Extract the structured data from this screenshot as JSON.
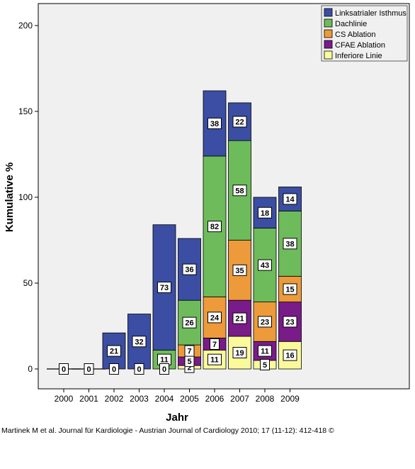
{
  "chart_data": {
    "type": "bar",
    "stacked": true,
    "xlabel": "Jahr",
    "ylabel": "Kumulative %",
    "ylim": [
      0,
      212
    ],
    "yticks": [
      0,
      50,
      100,
      150,
      200
    ],
    "grid": false,
    "legend_position": "top-right",
    "categories": [
      "2000",
      "2001",
      "2002",
      "2003",
      "2004",
      "2005",
      "2006",
      "2007",
      "2008",
      "2009"
    ],
    "series": [
      {
        "name": "Inferiore Linie",
        "color": "#fafa9b",
        "values": [
          0,
          0,
          0,
          0,
          0,
          2,
          11,
          19,
          5,
          16
        ],
        "labels": [
          "",
          "",
          "",
          "",
          "",
          "2",
          "11",
          "19",
          "5",
          "16"
        ]
      },
      {
        "name": "CFAE Ablation",
        "color": "#7a1b8a",
        "values": [
          0,
          0,
          0,
          0,
          0,
          5,
          7,
          21,
          11,
          23
        ],
        "labels": [
          "",
          "",
          "",
          "",
          "",
          "5",
          "7",
          "21",
          "11",
          "23"
        ]
      },
      {
        "name": "CS Ablation",
        "color": "#ec9a3a",
        "values": [
          0,
          0,
          0,
          0,
          0,
          7,
          24,
          35,
          23,
          15
        ],
        "labels": [
          "",
          "",
          "",
          "",
          "",
          "7",
          "24",
          "35",
          "23",
          "15"
        ]
      },
      {
        "name": "Dachlinie",
        "color": "#6ebb5b",
        "values": [
          0,
          0,
          0,
          0,
          11,
          26,
          82,
          58,
          43,
          38
        ],
        "labels": [
          "",
          "",
          "",
          "",
          "11",
          "26",
          "82",
          "58",
          "43",
          "38"
        ]
      },
      {
        "name": "Linksatrialer Isthmus",
        "color": "#3b4ea3",
        "values": [
          0,
          0,
          21,
          32,
          73,
          36,
          38,
          22,
          18,
          14
        ],
        "labels": [
          "0",
          "0",
          "21",
          "32",
          "73",
          "36",
          "38",
          "22",
          "18",
          "14"
        ]
      }
    ],
    "baseline_labels": [
      "0",
      "0",
      "0",
      "0",
      "0",
      "",
      "",
      "",
      "",
      ""
    ],
    "legend_order": [
      "Linksatrialer Isthmus",
      "Dachlinie",
      "CS Ablation",
      "CFAE Ablation",
      "Inferiore Linie"
    ]
  },
  "footer": {
    "citation": "Martinek M et al. Journal für Kardiologie - Austrian Journal of Cardiology 2010; 17 (11-12): 412-418 ©"
  }
}
